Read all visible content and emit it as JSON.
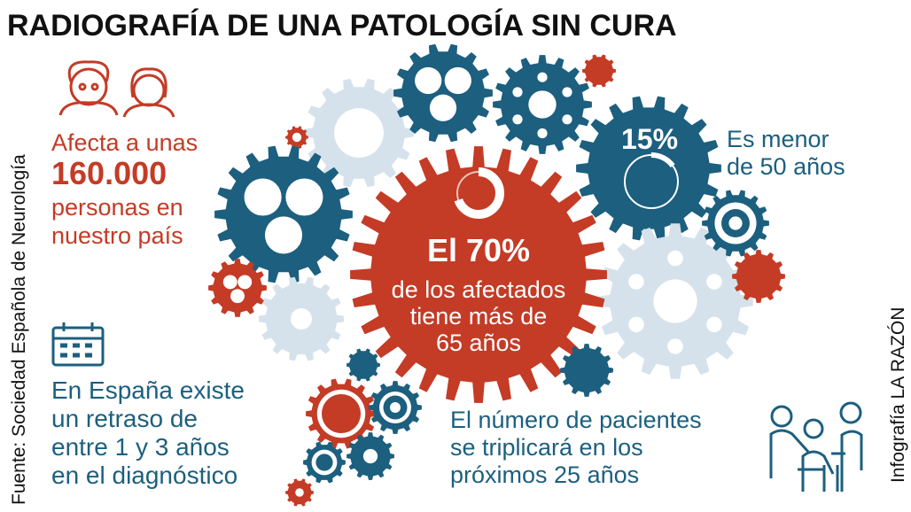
{
  "title": "RADIOGRAFÍA DE UNA PATOLOGÍA SIN CURA",
  "source": "Fuente: Sociedad Española de Neurología",
  "credit": "Infografía LA RAZÓN",
  "affected": {
    "lines": [
      "Afecta a unas",
      "160.000",
      "personas en",
      "nuestro país"
    ]
  },
  "center": {
    "headline": "El 70%",
    "lines": [
      "de los afectados",
      "tiene más de",
      "65 años"
    ]
  },
  "under50": {
    "headline": "15%",
    "lines": [
      "Es menor",
      "de 50 años"
    ]
  },
  "delay": {
    "lines": [
      "En España existe",
      "un retraso de",
      "entre 1 y 3 años",
      "en el diagnóstico"
    ]
  },
  "future": {
    "lines": [
      "El número de pacientes",
      "se triplicará en los",
      "próximos 25 años"
    ]
  }
}
